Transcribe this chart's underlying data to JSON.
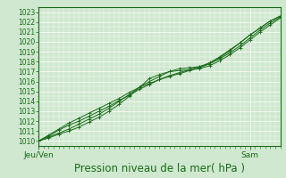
{
  "title": "",
  "xlabel": "Pression niveau de la mer( hPa )",
  "bg_color": "#cfe8cf",
  "plot_bg_color": "#cfe8cf",
  "grid_major_color": "#ffffff",
  "grid_minor_color": "#ddeedd",
  "line_color": "#1a6b1a",
  "ylim": [
    1009.5,
    1023.5
  ],
  "xlim": [
    0,
    48
  ],
  "yticks": [
    1010,
    1011,
    1012,
    1013,
    1014,
    1015,
    1016,
    1017,
    1018,
    1019,
    1020,
    1021,
    1022,
    1023
  ],
  "xtick_labels": [
    "Jeu/Ven",
    "Sam"
  ],
  "xtick_positions": [
    0,
    42
  ],
  "x_pts": [
    0,
    2,
    4,
    6,
    8,
    10,
    12,
    14,
    16,
    18,
    20,
    22,
    24,
    26,
    28,
    30,
    32,
    34,
    36,
    38,
    40,
    42,
    44,
    46,
    48
  ],
  "y_line1": [
    1010.0,
    1010.5,
    1011.1,
    1011.6,
    1012.0,
    1012.5,
    1013.0,
    1013.5,
    1014.1,
    1014.6,
    1015.2,
    1015.7,
    1016.2,
    1016.6,
    1016.9,
    1017.2,
    1017.5,
    1017.9,
    1018.5,
    1019.2,
    1019.9,
    1020.7,
    1021.4,
    1022.1,
    1022.6
  ],
  "y_line2": [
    1010.0,
    1010.3,
    1010.7,
    1011.0,
    1011.4,
    1011.9,
    1012.4,
    1013.0,
    1013.7,
    1014.5,
    1015.4,
    1016.3,
    1016.7,
    1017.0,
    1017.1,
    1017.2,
    1017.3,
    1017.6,
    1018.1,
    1018.7,
    1019.4,
    1020.2,
    1021.0,
    1021.7,
    1022.4
  ],
  "y_line3": [
    1010.0,
    1010.4,
    1010.8,
    1011.2,
    1011.7,
    1012.2,
    1012.7,
    1013.3,
    1014.0,
    1014.7,
    1015.4,
    1016.0,
    1016.5,
    1017.0,
    1017.3,
    1017.4,
    1017.5,
    1017.8,
    1018.3,
    1018.9,
    1019.6,
    1020.4,
    1021.2,
    1021.9,
    1022.5
  ],
  "y_line4": [
    1010.0,
    1010.6,
    1011.2,
    1011.8,
    1012.3,
    1012.8,
    1013.3,
    1013.8,
    1014.3,
    1014.9,
    1015.4,
    1015.8,
    1016.2,
    1016.5,
    1016.8,
    1017.1,
    1017.4,
    1017.8,
    1018.4,
    1019.1,
    1019.9,
    1020.7,
    1021.4,
    1022.1,
    1022.6
  ],
  "ytick_fontsize": 5.5,
  "xtick_fontsize": 6.5,
  "xlabel_fontsize": 8.5
}
